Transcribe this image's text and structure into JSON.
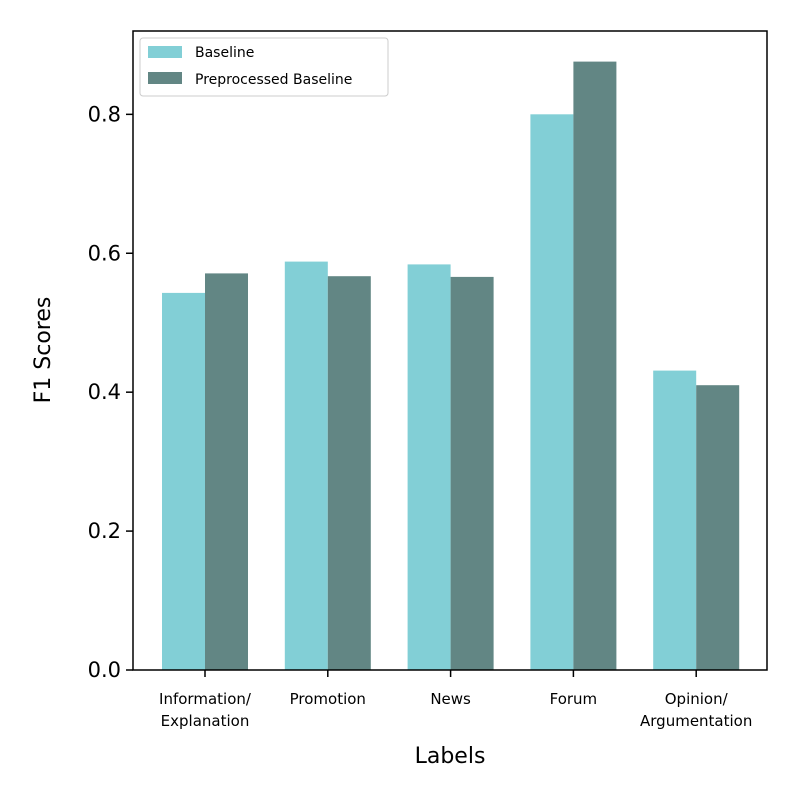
{
  "chart_data": {
    "type": "bar",
    "categories": [
      [
        "Information/",
        "Explanation"
      ],
      [
        "Promotion"
      ],
      [
        "News"
      ],
      [
        "Forum"
      ],
      [
        "Opinion/",
        "Argumentation"
      ]
    ],
    "series": [
      {
        "name": "Baseline",
        "color": "#82cfd6",
        "values": [
          0.543,
          0.588,
          0.584,
          0.8,
          0.431
        ]
      },
      {
        "name": "Preprocessed Baseline",
        "color": "#628684",
        "values": [
          0.571,
          0.567,
          0.566,
          0.876,
          0.41
        ]
      }
    ],
    "title": "",
    "xlabel": "Labels",
    "ylabel": "F1 Scores",
    "ylim": [
      0,
      0.92
    ],
    "yticks": [
      "0.0",
      "0.2",
      "0.4",
      "0.6",
      "0.8"
    ],
    "legend_position": "top-left",
    "grid": false
  }
}
